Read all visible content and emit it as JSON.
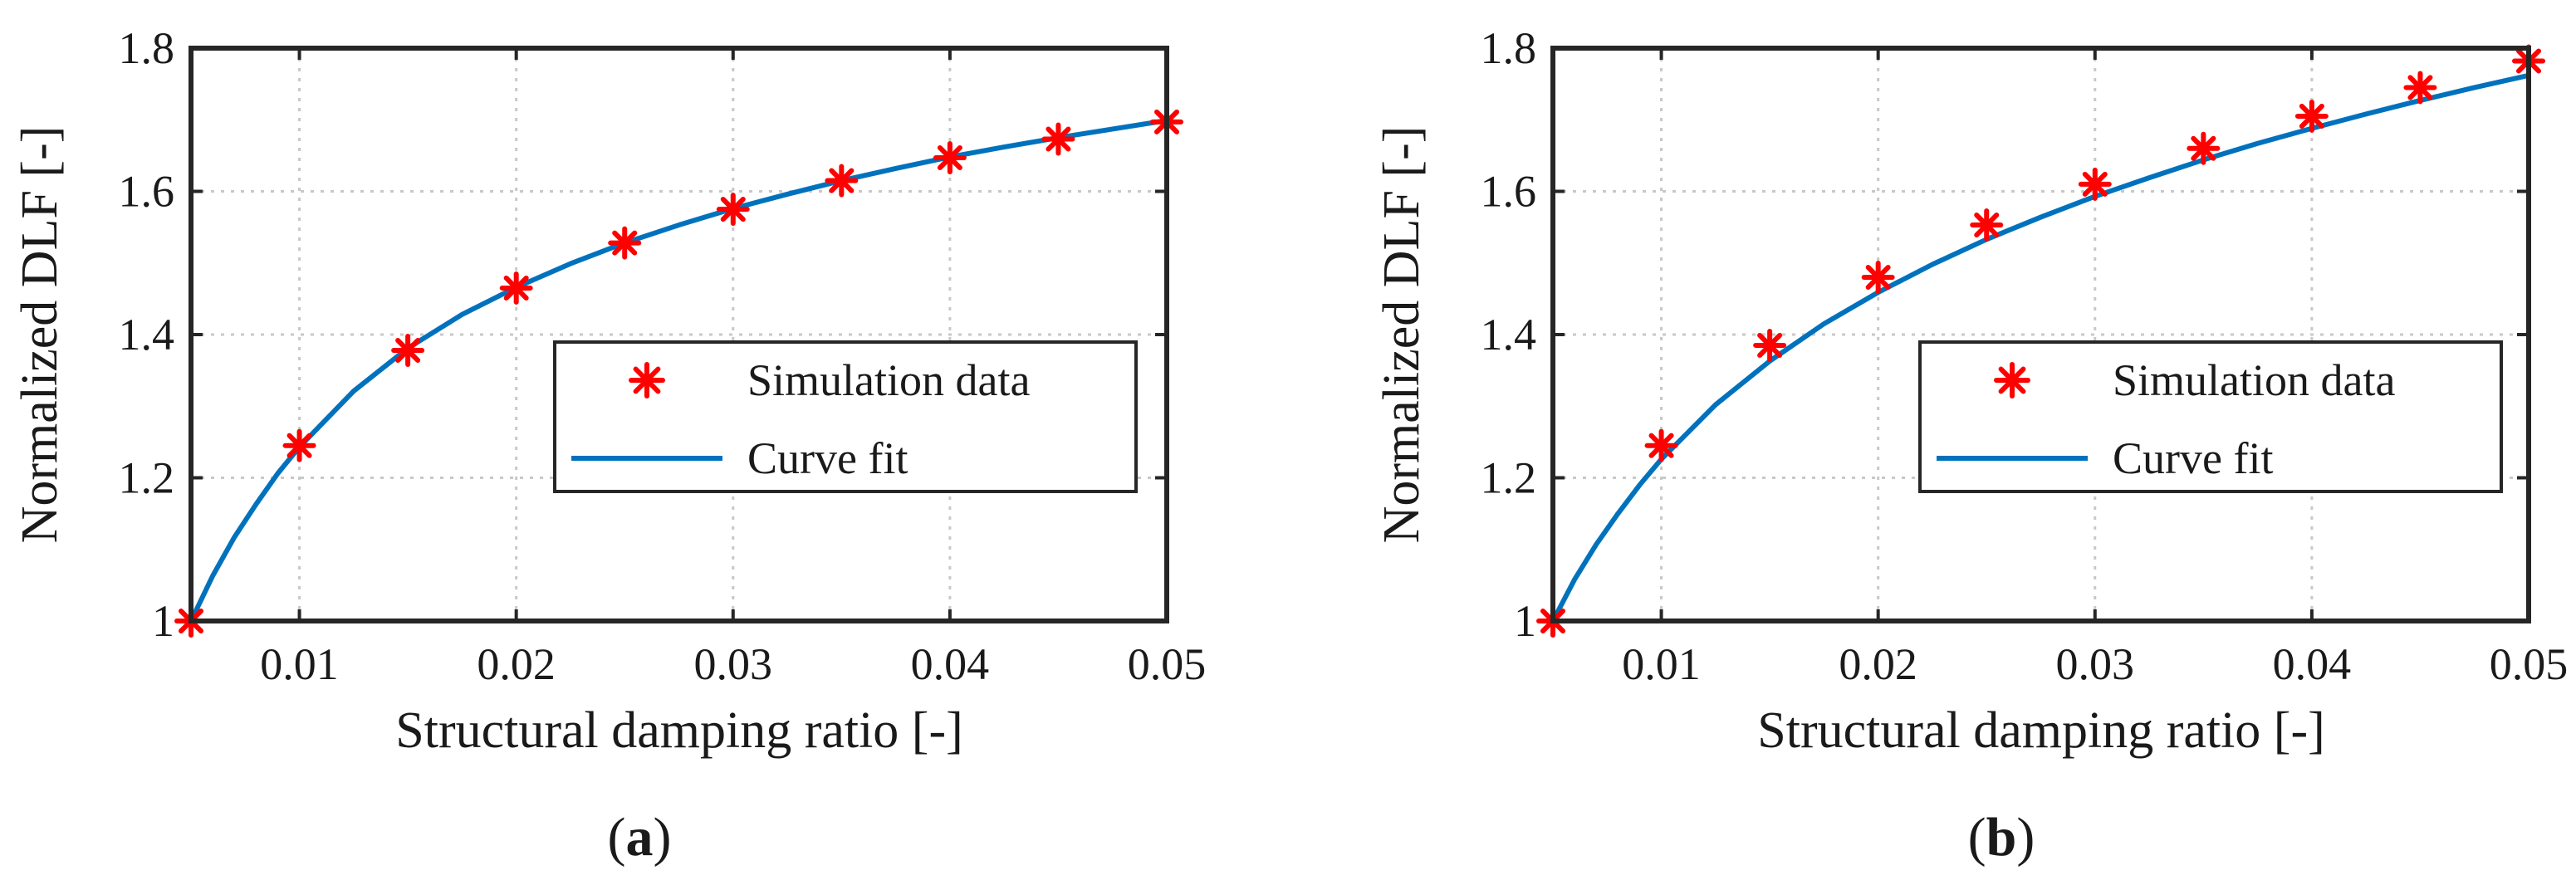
{
  "colors": {
    "series_simulation": "#ff0000",
    "series_fit": "#0072bd",
    "axis": "#262626",
    "grid": "#c8c8c8"
  },
  "chart_data": [
    {
      "type": "scatter+line",
      "panel_label": "a",
      "xlabel": "Structural damping ratio [-]",
      "ylabel": "Normalized DLF [-]",
      "xlim": [
        0.005,
        0.05
      ],
      "ylim": [
        1.0,
        1.8
      ],
      "xticks": [
        0.01,
        0.02,
        0.03,
        0.04,
        0.05
      ],
      "xtick_labels": [
        "0.01",
        "0.02",
        "0.03",
        "0.04",
        "0.05"
      ],
      "yticks": [
        1.0,
        1.2,
        1.4,
        1.6,
        1.8
      ],
      "ytick_labels": [
        "1",
        "1.2",
        "1.4",
        "1.6",
        "1.8"
      ],
      "grid": true,
      "legend_position": "center-right",
      "series": [
        {
          "name": "Simulation data",
          "kind": "markers",
          "marker": "asterisk",
          "x": [
            0.005,
            0.01,
            0.015,
            0.02,
            0.025,
            0.03,
            0.035,
            0.04,
            0.045,
            0.05
          ],
          "y": [
            1.0,
            1.245,
            1.378,
            1.465,
            1.528,
            1.575,
            1.615,
            1.647,
            1.673,
            1.697
          ]
        },
        {
          "name": "Curve fit",
          "kind": "line",
          "x": [
            0.005,
            0.006,
            0.007,
            0.008,
            0.009,
            0.01,
            0.0125,
            0.015,
            0.0175,
            0.02,
            0.0225,
            0.025,
            0.0275,
            0.03,
            0.0325,
            0.035,
            0.0375,
            0.04,
            0.0425,
            0.045,
            0.0475,
            0.05
          ],
          "y": [
            1.0,
            1.063,
            1.117,
            1.163,
            1.206,
            1.243,
            1.321,
            1.381,
            1.428,
            1.466,
            1.499,
            1.528,
            1.553,
            1.576,
            1.596,
            1.615,
            1.632,
            1.648,
            1.662,
            1.675,
            1.687,
            1.699
          ]
        }
      ]
    },
    {
      "type": "scatter+line",
      "panel_label": "b",
      "xlabel": "Structural damping ratio [-]",
      "ylabel": "Normalized DLF [-]",
      "xlim": [
        0.005,
        0.05
      ],
      "ylim": [
        1.0,
        1.8
      ],
      "xticks": [
        0.01,
        0.02,
        0.03,
        0.04,
        0.05
      ],
      "xtick_labels": [
        "0.01",
        "0.02",
        "0.03",
        "0.04",
        "0.05"
      ],
      "yticks": [
        1.0,
        1.2,
        1.4,
        1.6,
        1.8
      ],
      "ytick_labels": [
        "1",
        "1.2",
        "1.4",
        "1.6",
        "1.8"
      ],
      "grid": true,
      "legend_position": "center-right",
      "series": [
        {
          "name": "Simulation data",
          "kind": "markers",
          "marker": "asterisk",
          "x": [
            0.005,
            0.01,
            0.015,
            0.02,
            0.025,
            0.03,
            0.035,
            0.04,
            0.045,
            0.05
          ],
          "y": [
            1.0,
            1.245,
            1.385,
            1.48,
            1.553,
            1.61,
            1.66,
            1.705,
            1.745,
            1.782
          ]
        },
        {
          "name": "Curve fit",
          "kind": "line",
          "x": [
            0.005,
            0.006,
            0.007,
            0.008,
            0.009,
            0.01,
            0.0125,
            0.015,
            0.0175,
            0.02,
            0.0225,
            0.025,
            0.0275,
            0.03,
            0.0325,
            0.035,
            0.0375,
            0.04,
            0.0425,
            0.045,
            0.0475,
            0.05
          ],
          "y": [
            1.0,
            1.058,
            1.107,
            1.15,
            1.19,
            1.226,
            1.302,
            1.363,
            1.415,
            1.459,
            1.498,
            1.533,
            1.564,
            1.593,
            1.619,
            1.644,
            1.667,
            1.688,
            1.708,
            1.727,
            1.745,
            1.762
          ]
        }
      ]
    }
  ]
}
